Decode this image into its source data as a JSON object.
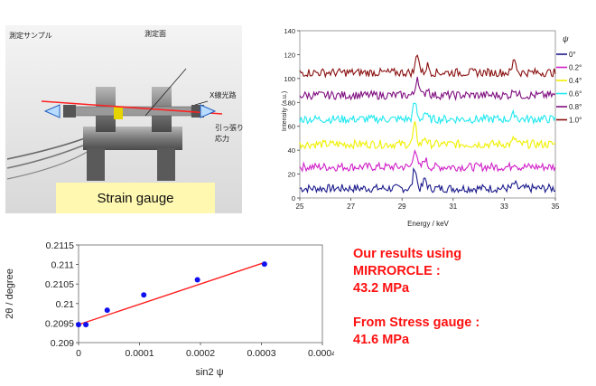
{
  "photo": {
    "label_sample": "測定サンプル",
    "label_surface": "測定面",
    "label_xray_path": "X線光路",
    "label_tensile_line1": "引っ張り",
    "label_tensile_line2": "応力",
    "strain_gauge_label": "Strain gauge"
  },
  "results": {
    "line1": "Our results using",
    "line2": "MIRRORCLE :",
    "line3": "43.2 MPa",
    "line4": "From Stress gauge :",
    "line5": "41.6 MPa"
  },
  "chart_data": [
    {
      "type": "line",
      "title": "",
      "xlabel": "Energy / keV",
      "ylabel": "Intensity (a.u.)",
      "xlim": [
        25,
        35
      ],
      "ylim": [
        0,
        140
      ],
      "xticks": [
        25,
        27,
        29,
        31,
        33,
        35
      ],
      "yticks": [
        0,
        20,
        40,
        60,
        80,
        100,
        120,
        140
      ],
      "legend_title": "ψ",
      "legend_position": "right",
      "series": [
        {
          "name": "0°",
          "color": "#1a1a8c",
          "baseline": 8,
          "peaks": [
            {
              "x": 29.5,
              "h": 18
            },
            {
              "x": 29.9,
              "h": 8
            },
            {
              "x": 33.4,
              "h": 4
            }
          ]
        },
        {
          "name": "0.2°",
          "color": "#d020c8",
          "baseline": 26,
          "peaks": [
            {
              "x": 29.5,
              "h": 16
            },
            {
              "x": 29.9,
              "h": 7
            },
            {
              "x": 33.4,
              "h": 4
            }
          ]
        },
        {
          "name": "0.4°",
          "color": "#f0f000",
          "baseline": 45,
          "peaks": [
            {
              "x": 29.5,
              "h": 16
            },
            {
              "x": 29.9,
              "h": 6
            },
            {
              "x": 33.4,
              "h": 5
            }
          ]
        },
        {
          "name": "0.6°",
          "color": "#20e8f0",
          "baseline": 66,
          "peaks": [
            {
              "x": 29.5,
              "h": 14
            },
            {
              "x": 29.9,
              "h": 6
            },
            {
              "x": 33.4,
              "h": 5
            }
          ]
        },
        {
          "name": "0.8°",
          "color": "#801080",
          "baseline": 86,
          "peaks": [
            {
              "x": 29.6,
              "h": 16
            },
            {
              "x": 30.0,
              "h": 6
            },
            {
              "x": 33.4,
              "h": 6
            }
          ]
        },
        {
          "name": "1.0°",
          "color": "#8a1010",
          "baseline": 105,
          "peaks": [
            {
              "x": 29.6,
              "h": 17
            },
            {
              "x": 30.0,
              "h": 6
            },
            {
              "x": 33.4,
              "h": 12
            }
          ]
        }
      ]
    },
    {
      "type": "scatter",
      "title": "",
      "xlabel": "sin2 ψ",
      "ylabel": "2θ / degree",
      "xlim": [
        0,
        0.0004
      ],
      "ylim": [
        0.209,
        0.2115
      ],
      "xticks": [
        "0",
        "0.0001",
        "0.0002",
        "0.0003",
        "0.0004"
      ],
      "yticks": [
        "0.209",
        "0.2095",
        "0.21",
        "0.2105",
        "0.211",
        "0.2115"
      ],
      "points": [
        {
          "x": 0.0,
          "y": 0.20946
        },
        {
          "x": 1.2e-05,
          "y": 0.20946
        },
        {
          "x": 4.7e-05,
          "y": 0.20983
        },
        {
          "x": 0.000107,
          "y": 0.21022
        },
        {
          "x": 0.000195,
          "y": 0.21061
        },
        {
          "x": 0.000305,
          "y": 0.21101
        }
      ],
      "fit_line": {
        "x": [
          0.0,
          0.000305
        ],
        "y": [
          0.20946,
          0.21105
        ],
        "color": "#ff2020"
      },
      "point_color": "#1010ee"
    }
  ]
}
